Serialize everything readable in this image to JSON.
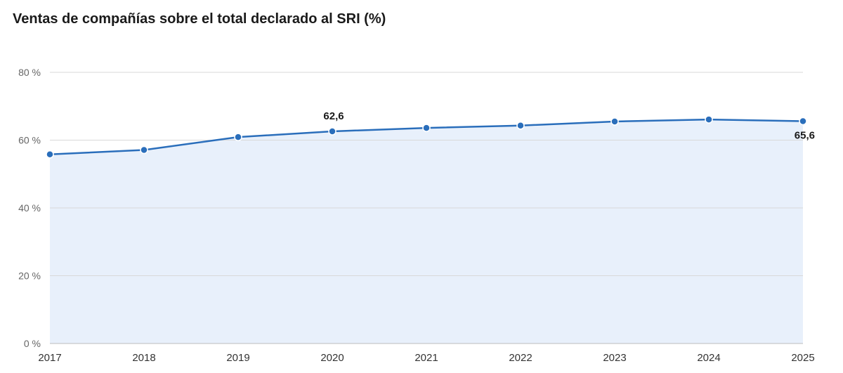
{
  "chart_data": {
    "type": "area",
    "title": "Ventas de compañías sobre el total declarado al SRI (%)",
    "xlabel": "",
    "ylabel": "",
    "x": [
      "2017",
      "2018",
      "2019",
      "2020",
      "2021",
      "2022",
      "2023",
      "2024",
      "2025"
    ],
    "series": [
      {
        "values": [
          55.8,
          57.1,
          60.9,
          62.6,
          63.6,
          64.3,
          65.5,
          66.1,
          65.6
        ]
      }
    ],
    "ylim": [
      0,
      80
    ],
    "y_ticks": [
      0,
      20,
      40,
      60,
      80
    ],
    "y_tick_labels": [
      "0 %",
      "20 %",
      "40 %",
      "60 %",
      "80 %"
    ],
    "data_labels": [
      {
        "x": "2020",
        "text": "62,6"
      },
      {
        "x": "2025",
        "text": "65,6"
      }
    ],
    "grid": true,
    "legend": "none",
    "colors": {
      "line": "#2a6ebb",
      "area": "#e8f0fb",
      "grid": "#d9d9d9",
      "baseline": "#bdbdbd"
    }
  }
}
